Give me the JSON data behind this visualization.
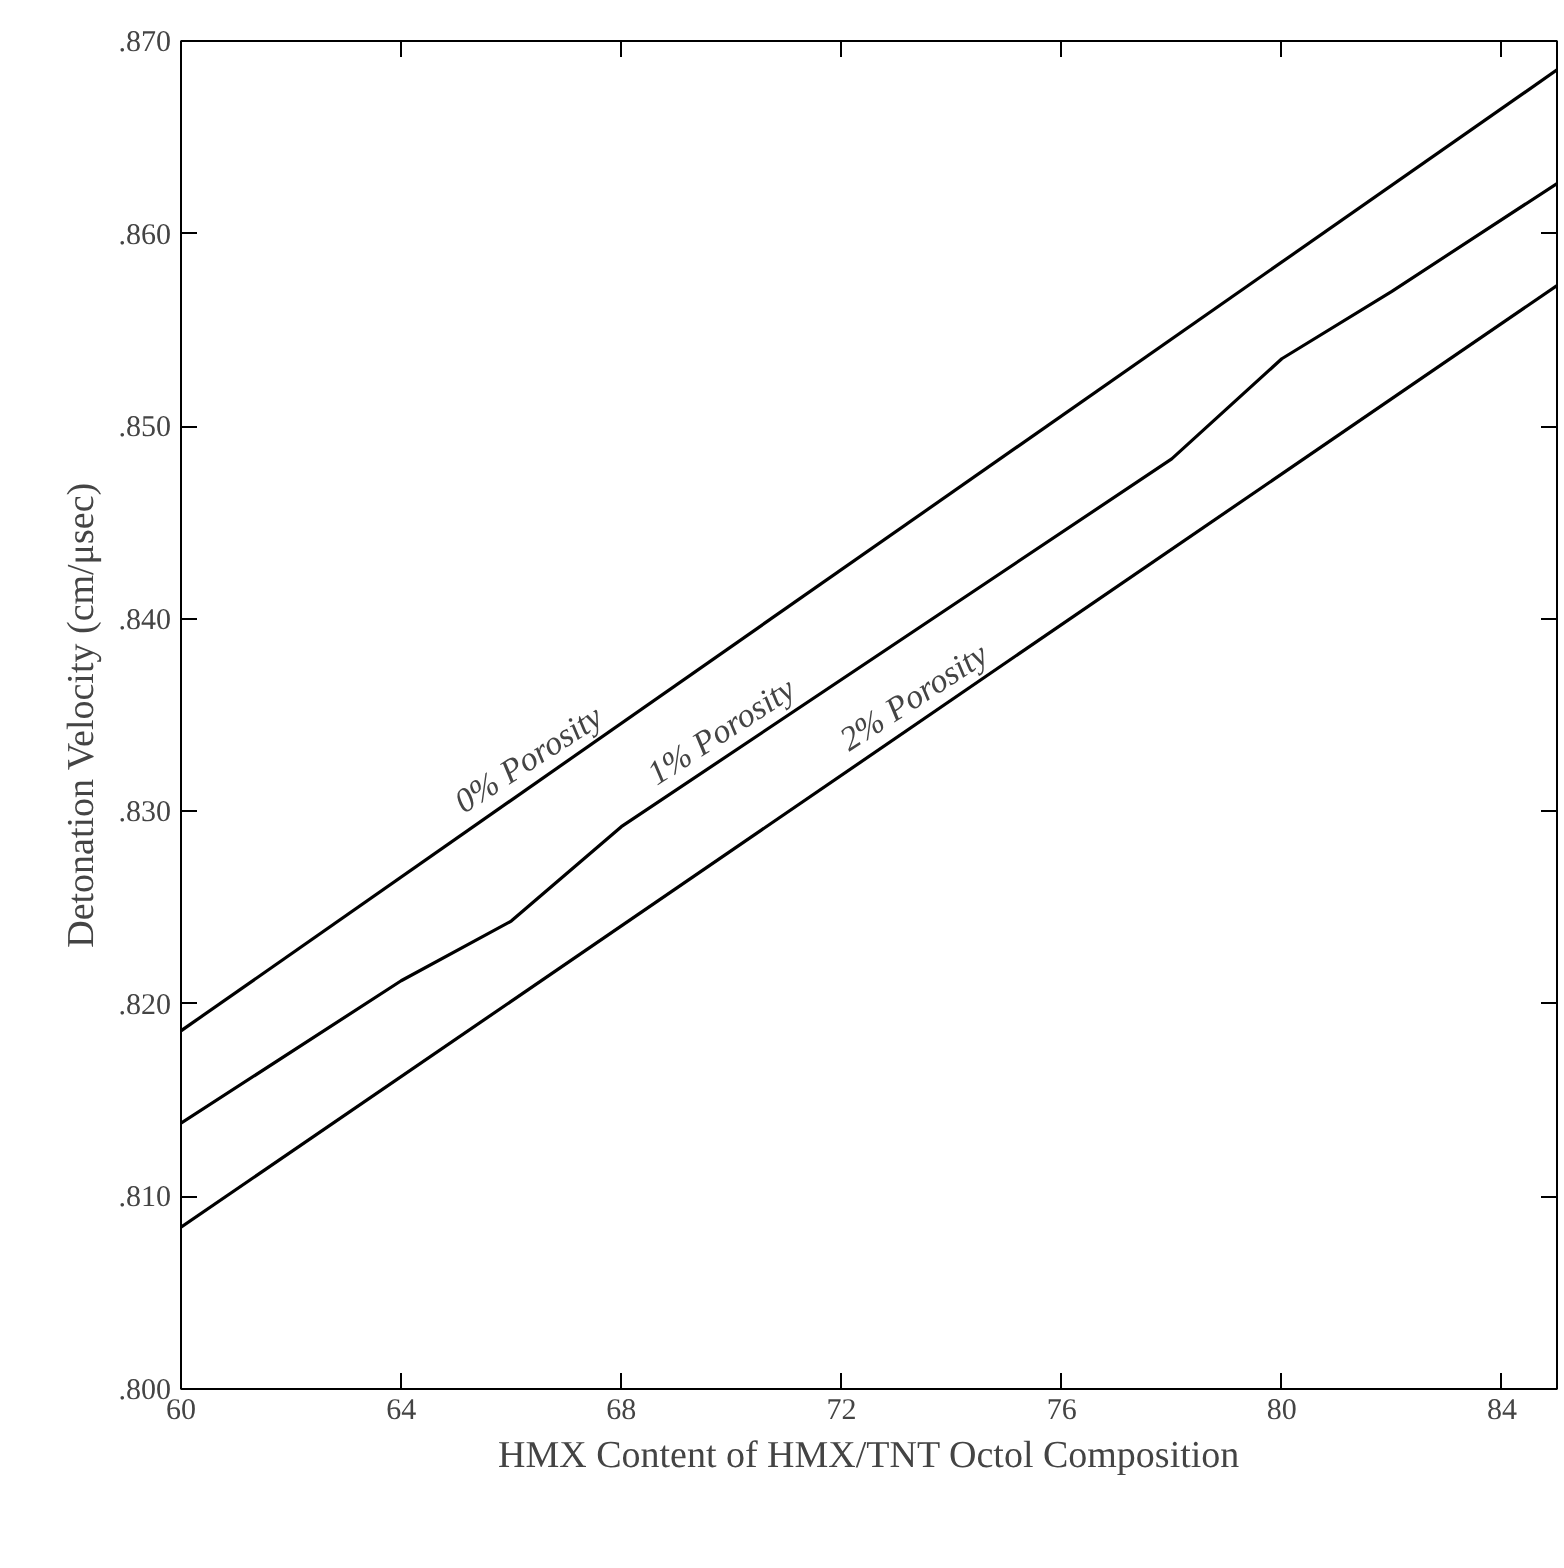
{
  "chart_data": {
    "type": "line",
    "xlabel": "HMX Content of HMX/TNT Octol Composition",
    "ylabel": "Detonation Velocity (cm/μsec)",
    "xlim": [
      60,
      85
    ],
    "ylim": [
      0.8,
      0.87
    ],
    "xticks": [
      60,
      64,
      68,
      72,
      76,
      80,
      84
    ],
    "yticks": [
      {
        "value": 0.8,
        "label": ".800"
      },
      {
        "value": 0.81,
        "label": ".810"
      },
      {
        "value": 0.82,
        "label": ".820"
      },
      {
        "value": 0.83,
        "label": ".830"
      },
      {
        "value": 0.84,
        "label": ".840"
      },
      {
        "value": 0.85,
        "label": ".850"
      },
      {
        "value": 0.86,
        "label": ".860"
      },
      {
        "value": 0.87,
        "label": ".870"
      }
    ],
    "series": [
      {
        "color": "#000000",
        "x": [
          60,
          85
        ],
        "values": [
          0.8186,
          0.8685
        ]
      },
      {
        "color": "#000000",
        "x": [
          60,
          64,
          66,
          68,
          78,
          80,
          82,
          85
        ],
        "values": [
          0.8138,
          0.8212,
          0.8243,
          0.8292,
          0.8483,
          0.8535,
          0.857,
          0.8626
        ]
      },
      {
        "color": "#000000",
        "x": [
          60,
          85
        ],
        "values": [
          0.8084,
          0.8573
        ]
      }
    ],
    "annotations": [
      "0% Porosity",
      "1% Porosity",
      "2% Porosity"
    ]
  }
}
